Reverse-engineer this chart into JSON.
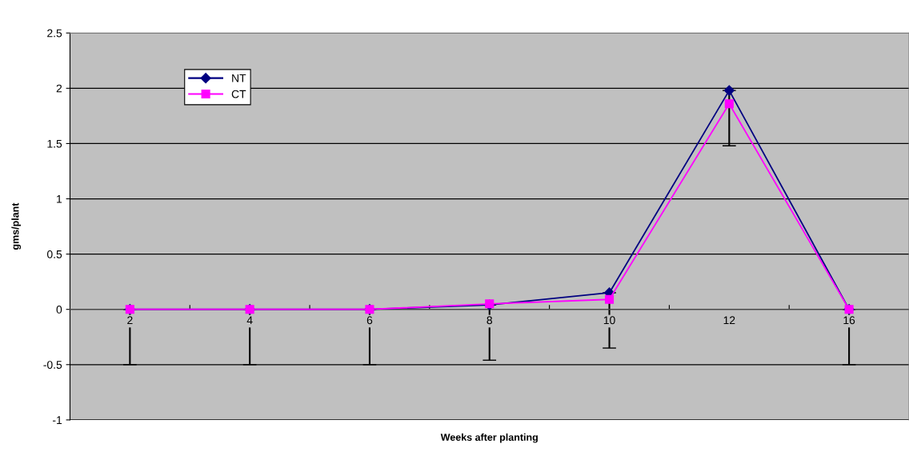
{
  "chart_data": {
    "type": "line",
    "xlabel": "Weeks after planting",
    "ylabel": "gms/plant",
    "categories": [
      "2",
      "4",
      "6",
      "8",
      "10",
      "12",
      "16"
    ],
    "series": [
      {
        "name": "NT",
        "color": "#000080",
        "marker": "diamond",
        "values": [
          0,
          0,
          0,
          0.04,
          0.15,
          1.98,
          0
        ],
        "errors": [
          [
            -0.5,
            0
          ],
          [
            -0.5,
            0
          ],
          [
            -0.5,
            0
          ],
          [
            -0.46,
            0.04
          ],
          [
            -0.35,
            0.15
          ],
          [
            1.48,
            1.98
          ],
          [
            -0.5,
            0
          ]
        ]
      },
      {
        "name": "CT",
        "color": "#ff00ff",
        "marker": "square",
        "values": [
          0,
          0,
          0,
          0.05,
          0.09,
          1.86,
          0
        ]
      }
    ],
    "ylim": [
      -1,
      2.5
    ],
    "yticks": [
      -1,
      -0.5,
      0,
      0.5,
      1,
      1.5,
      2,
      2.5
    ],
    "grid": "y",
    "legend": "top left"
  }
}
